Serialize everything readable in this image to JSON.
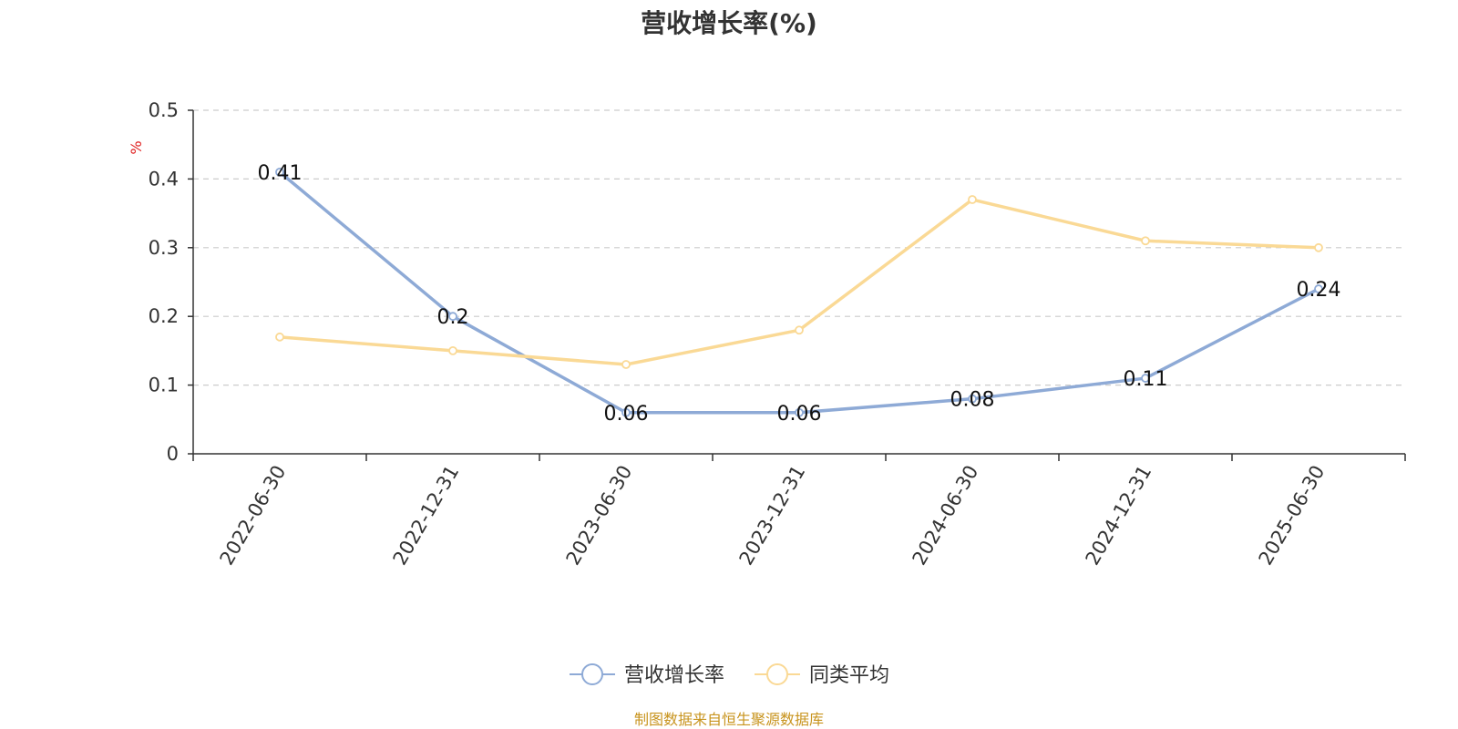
{
  "chart_data": {
    "type": "line",
    "title": "营收增长率(%)",
    "ylabel": "%",
    "xlabel": "",
    "categories": [
      "2022-06-30",
      "2022-12-31",
      "2023-06-30",
      "2023-12-31",
      "2024-06-30",
      "2024-12-31",
      "2025-06-30"
    ],
    "series": [
      {
        "name": "营收增长率",
        "values": [
          0.41,
          0.2,
          0.06,
          0.06,
          0.08,
          0.11,
          0.24
        ],
        "color": "#8eaad6",
        "show_labels": true
      },
      {
        "name": "同类平均",
        "values": [
          0.17,
          0.15,
          0.13,
          0.18,
          0.37,
          0.31,
          0.3
        ],
        "color": "#fad995",
        "show_labels": false
      }
    ],
    "ylim": [
      0,
      0.5
    ],
    "yticks": [
      0,
      0.1,
      0.2,
      0.3,
      0.4,
      0.5
    ],
    "ytick_labels": [
      "0",
      "0.1",
      "0.2",
      "0.3",
      "0.4",
      "0.5"
    ],
    "data_labels": [
      "0.41",
      "0.2",
      "0.06",
      "0.06",
      "0.08",
      "0.11",
      "0.24"
    ],
    "grid": true,
    "legend_position": "bottom-center",
    "ylabel_color": "#e02020"
  },
  "source_note": "制图数据来自恒生聚源数据库"
}
